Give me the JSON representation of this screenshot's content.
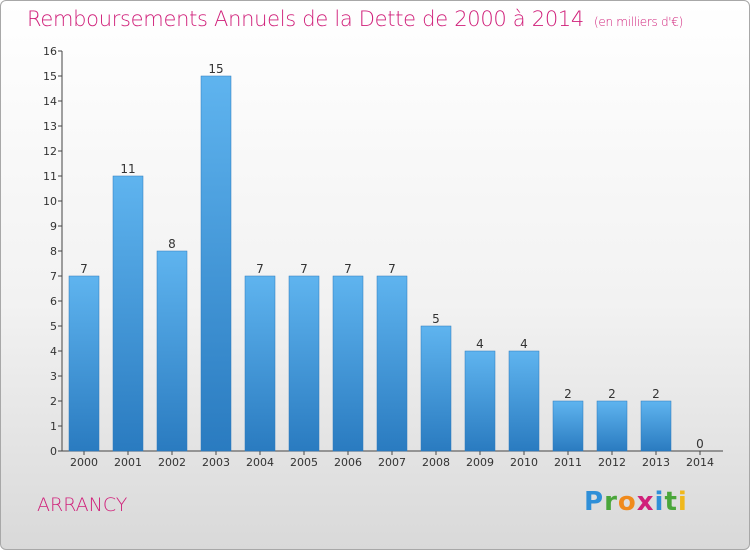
{
  "chart_data": {
    "type": "bar",
    "title": "Remboursements Annuels de la Dette de 2000 à 2014",
    "unit_note": "(en milliers d'€)",
    "categories": [
      "2000",
      "2001",
      "2002",
      "2003",
      "2004",
      "2005",
      "2006",
      "2007",
      "2008",
      "2009",
      "2010",
      "2011",
      "2012",
      "2013",
      "2014"
    ],
    "values": [
      7,
      11,
      8,
      15,
      7,
      7,
      7,
      7,
      5,
      4,
      4,
      2,
      2,
      2,
      0
    ],
    "ylim": [
      0,
      16
    ],
    "yticks": [
      0,
      1,
      2,
      3,
      4,
      5,
      6,
      7,
      8,
      9,
      10,
      11,
      12,
      13,
      14,
      15,
      16
    ],
    "grid": false,
    "bar_color": "#3a8fd4"
  },
  "commune": "ARRANCY",
  "logo": {
    "letters": [
      "P",
      "r",
      "o",
      "x",
      "i",
      "t",
      "i"
    ]
  }
}
